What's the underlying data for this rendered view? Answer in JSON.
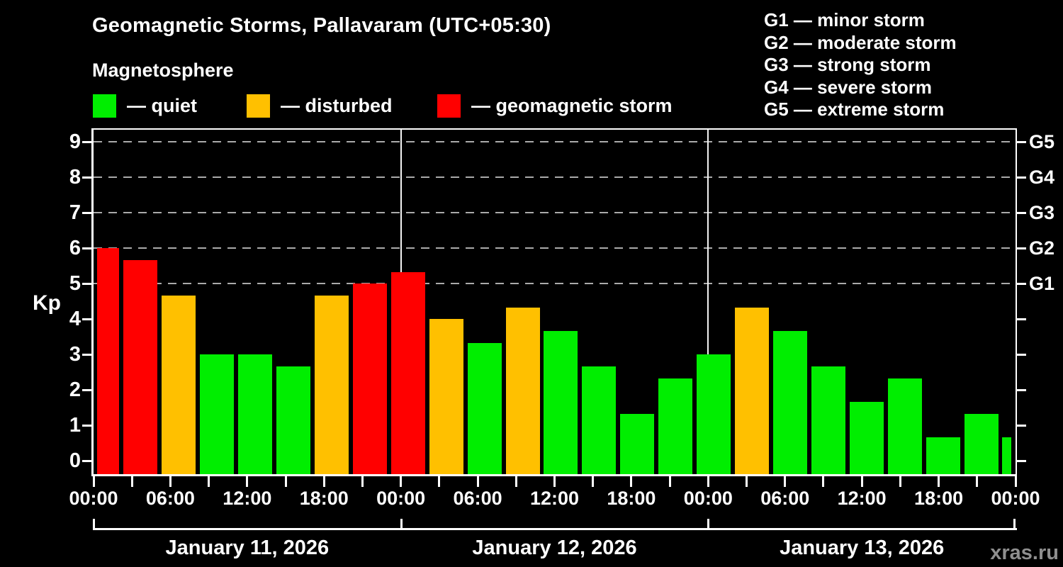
{
  "title": "Geomagnetic Storms, Pallavaram (UTC+05:30)",
  "subtitle": "Magnetosphere",
  "watermark": "xras.ru",
  "legend": {
    "dash": "—",
    "items": [
      {
        "label": "quiet",
        "status": "quiet",
        "color": "#00ee00"
      },
      {
        "label": "disturbed",
        "status": "disturbed",
        "color": "#ffc000"
      },
      {
        "label": "geomagnetic storm",
        "status": "storm",
        "color": "#ff0000"
      }
    ]
  },
  "g_scale_legend": {
    "dash": "—",
    "items": [
      {
        "code": "G1",
        "label": "minor storm"
      },
      {
        "code": "G2",
        "label": "moderate storm"
      },
      {
        "code": "G3",
        "label": "strong storm"
      },
      {
        "code": "G4",
        "label": "severe storm"
      },
      {
        "code": "G5",
        "label": "extreme storm"
      }
    ]
  },
  "colors": {
    "background": "#000000",
    "text": "#ffffff",
    "grid": "#aaaaaa",
    "axis": "#ffffff",
    "watermark": "#8f8f8f",
    "quiet": "#00ee00",
    "disturbed": "#ffc000",
    "storm": "#ff0000"
  },
  "chart_data": {
    "type": "bar",
    "title": "Geomagnetic Storms, Pallavaram (UTC+05:30)",
    "ylabel": "Kp",
    "ylim": [
      0,
      9
    ],
    "y_ticks": [
      0,
      1,
      2,
      3,
      4,
      5,
      6,
      7,
      8,
      9
    ],
    "gridlines_at_kp": [
      5,
      6,
      7,
      8,
      9
    ],
    "grid": "dashed horizontal at Kp 5-9 only",
    "right_axis_labels": [
      {
        "kp": 5,
        "label": "G1"
      },
      {
        "kp": 6,
        "label": "G2"
      },
      {
        "kp": 7,
        "label": "G3"
      },
      {
        "kp": 8,
        "label": "G4"
      },
      {
        "kp": 9,
        "label": "G5"
      }
    ],
    "x_tick_labels": [
      "00:00",
      "06:00",
      "12:00",
      "18:00",
      "00:00",
      "06:00",
      "12:00",
      "18:00",
      "00:00",
      "06:00",
      "12:00",
      "18:00",
      "00:00"
    ],
    "x_minor_tick_hours": 3,
    "day_labels": [
      "January 11, 2026",
      "January 12, 2026",
      "January 13, 2026"
    ],
    "legend_position": "top-left",
    "bars": [
      {
        "day": 1,
        "time": "00:00",
        "kp": 6.0,
        "status": "storm"
      },
      {
        "day": 1,
        "time": "03:00",
        "kp": 5.67,
        "status": "storm"
      },
      {
        "day": 1,
        "time": "06:00",
        "kp": 4.67,
        "status": "disturbed"
      },
      {
        "day": 1,
        "time": "09:00",
        "kp": 3.0,
        "status": "quiet"
      },
      {
        "day": 1,
        "time": "12:00",
        "kp": 3.0,
        "status": "quiet"
      },
      {
        "day": 1,
        "time": "15:00",
        "kp": 2.67,
        "status": "quiet"
      },
      {
        "day": 1,
        "time": "18:00",
        "kp": 4.67,
        "status": "disturbed"
      },
      {
        "day": 1,
        "time": "21:00",
        "kp": 5.0,
        "status": "storm"
      },
      {
        "day": 2,
        "time": "00:00",
        "kp": 5.33,
        "status": "storm"
      },
      {
        "day": 2,
        "time": "03:00",
        "kp": 4.0,
        "status": "disturbed"
      },
      {
        "day": 2,
        "time": "06:00",
        "kp": 3.33,
        "status": "quiet"
      },
      {
        "day": 2,
        "time": "09:00",
        "kp": 4.33,
        "status": "disturbed"
      },
      {
        "day": 2,
        "time": "12:00",
        "kp": 3.67,
        "status": "quiet"
      },
      {
        "day": 2,
        "time": "15:00",
        "kp": 2.67,
        "status": "quiet"
      },
      {
        "day": 2,
        "time": "18:00",
        "kp": 1.33,
        "status": "quiet"
      },
      {
        "day": 2,
        "time": "21:00",
        "kp": 2.33,
        "status": "quiet"
      },
      {
        "day": 3,
        "time": "00:00",
        "kp": 3.0,
        "status": "quiet"
      },
      {
        "day": 3,
        "time": "03:00",
        "kp": 4.33,
        "status": "disturbed"
      },
      {
        "day": 3,
        "time": "06:00",
        "kp": 3.67,
        "status": "quiet"
      },
      {
        "day": 3,
        "time": "09:00",
        "kp": 2.67,
        "status": "quiet"
      },
      {
        "day": 3,
        "time": "12:00",
        "kp": 1.67,
        "status": "quiet"
      },
      {
        "day": 3,
        "time": "15:00",
        "kp": 2.33,
        "status": "quiet"
      },
      {
        "day": 3,
        "time": "18:00",
        "kp": 0.67,
        "status": "quiet"
      },
      {
        "day": 3,
        "time": "21:00",
        "kp": 1.33,
        "status": "quiet"
      },
      {
        "day": 4,
        "time": "00:00",
        "kp": 0.67,
        "status": "quiet",
        "clipped": true
      }
    ]
  }
}
